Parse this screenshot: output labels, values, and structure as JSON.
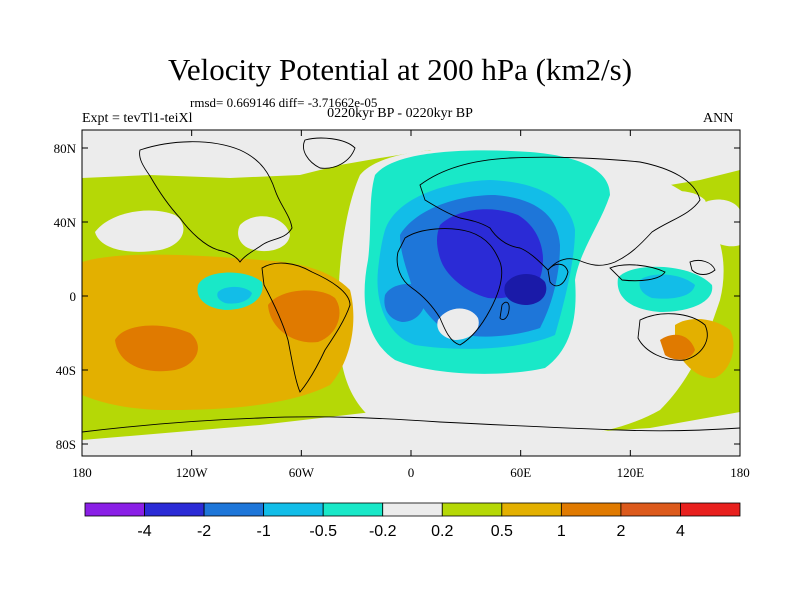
{
  "figure": {
    "title": "Velocity Potential at 200 hPa (km2/s)",
    "stats": "rmsd= 0.669146 diff= -3.71662e-05",
    "experiment": "Expt = tevTl1-teiXl",
    "period": "0220kyr BP - 0220kyr BP",
    "season": "ANN"
  },
  "map": {
    "lon_ticks": [
      "180",
      "120W",
      "60W",
      "0",
      "60E",
      "120E",
      "180"
    ],
    "lat_ticks": [
      "80N",
      "40N",
      "0",
      "40S",
      "80S"
    ]
  },
  "colorbar": {
    "levels": [
      "-4",
      "-2",
      "-1",
      "-0.5",
      "-0.2",
      "0.2",
      "0.5",
      "1",
      "2",
      "4"
    ],
    "colors": [
      "#8a1fe6",
      "#2b2bd6",
      "#1e76d9",
      "#12bde8",
      "#19e8c8",
      "#ececec",
      "#b5d806",
      "#e3b000",
      "#e07a00",
      "#dc5a1c",
      "#e8201e"
    ]
  }
}
